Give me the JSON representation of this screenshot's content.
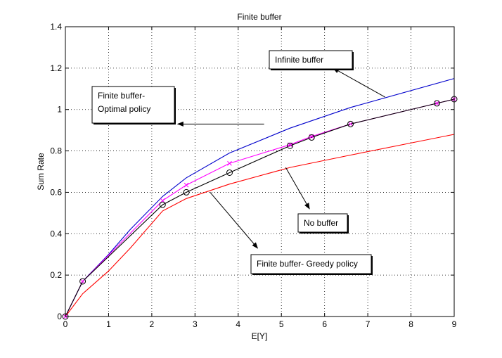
{
  "chart_data": {
    "type": "line",
    "title": "Finite buffer",
    "xlabel": "E[Y]",
    "ylabel": "Sum Rate",
    "xlim": [
      0,
      9
    ],
    "ylim": [
      0,
      1.4
    ],
    "xticks": [
      0,
      1,
      2,
      3,
      4,
      5,
      6,
      7,
      8,
      9
    ],
    "yticks": [
      0,
      0.2,
      0.4,
      0.6,
      0.8,
      1,
      1.2,
      1.4
    ],
    "xtick_labels": [
      "0",
      "1",
      "2",
      "3",
      "4",
      "5",
      "6",
      "7",
      "8",
      "9"
    ],
    "ytick_labels": [
      "0",
      "0.2",
      "0.4",
      "0.6",
      "0.8",
      "1",
      "1.2",
      "1.4"
    ],
    "grid": true,
    "series": [
      {
        "color": "#0000cc",
        "marker": "none",
        "x": [
          0,
          0.4,
          1,
          1.5,
          2.25,
          2.8,
          3.8,
          5.2,
          6.6,
          9
        ],
        "y": [
          0,
          0.17,
          0.3,
          0.42,
          0.58,
          0.67,
          0.79,
          0.91,
          1.01,
          1.15
        ]
      },
      {
        "color": "#ff00ff",
        "marker": "x",
        "x": [
          0,
          0.4,
          2.25,
          2.8,
          3.8,
          5.2,
          5.7,
          6.6,
          8.6,
          9
        ],
        "y": [
          0,
          0.17,
          0.56,
          0.635,
          0.74,
          0.83,
          0.87,
          0.93,
          1.03,
          1.05
        ]
      },
      {
        "color": "#000000",
        "marker": "o",
        "x": [
          0,
          0.4,
          2.25,
          2.8,
          3.8,
          5.2,
          5.7,
          6.6,
          8.6,
          9
        ],
        "y": [
          0,
          0.17,
          0.54,
          0.6,
          0.695,
          0.825,
          0.865,
          0.93,
          1.03,
          1.05
        ]
      },
      {
        "color": "#ff0000",
        "marker": "none",
        "x": [
          0,
          0.4,
          1,
          1.5,
          2.25,
          2.8,
          3.8,
          5.2,
          6.6,
          9
        ],
        "y": [
          0,
          0.11,
          0.22,
          0.33,
          0.51,
          0.57,
          0.64,
          0.72,
          0.78,
          0.88
        ]
      }
    ],
    "annotations": [
      {
        "lines": [
          "Infinite buffer"
        ],
        "point_to": [
          7.4,
          1.06
        ],
        "arrow_head_at": [
          6.2,
          1.2
        ]
      },
      {
        "lines": [
          "Finite buffer-",
          "Optimal policy"
        ],
        "point_to": [
          4.6,
          0.93
        ],
        "arrow_head_at": [
          2.6,
          0.93
        ]
      },
      {
        "lines": [
          "No buffer"
        ],
        "point_to": [
          5.1,
          0.72
        ],
        "arrow_head_at": [
          5.65,
          0.52
        ]
      },
      {
        "lines": [
          "Finite buffer- Greedy policy"
        ],
        "point_to": [
          3.35,
          0.6
        ],
        "arrow_head_at": [
          4.45,
          0.33
        ]
      }
    ]
  }
}
